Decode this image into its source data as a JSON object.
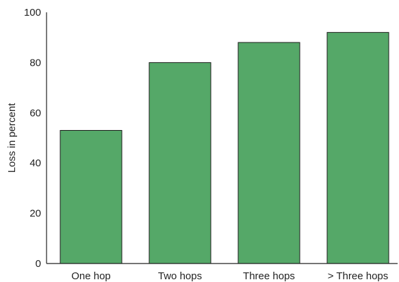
{
  "chart_data": {
    "type": "bar",
    "categories": [
      "One hop",
      "Two hops",
      "Three hops",
      "> Three hops"
    ],
    "values": [
      53,
      80,
      88,
      92
    ],
    "title": "",
    "xlabel": "",
    "ylabel": "Loss in percent",
    "ylim": [
      0,
      100
    ],
    "yticks": [
      "0",
      "20",
      "40",
      "60",
      "80",
      "100"
    ],
    "grid": false,
    "legend": "none",
    "colors": {
      "bar": "#55a868",
      "bar_edge": "#1a1a1a",
      "axis": "#222222",
      "text": "#222222"
    }
  }
}
